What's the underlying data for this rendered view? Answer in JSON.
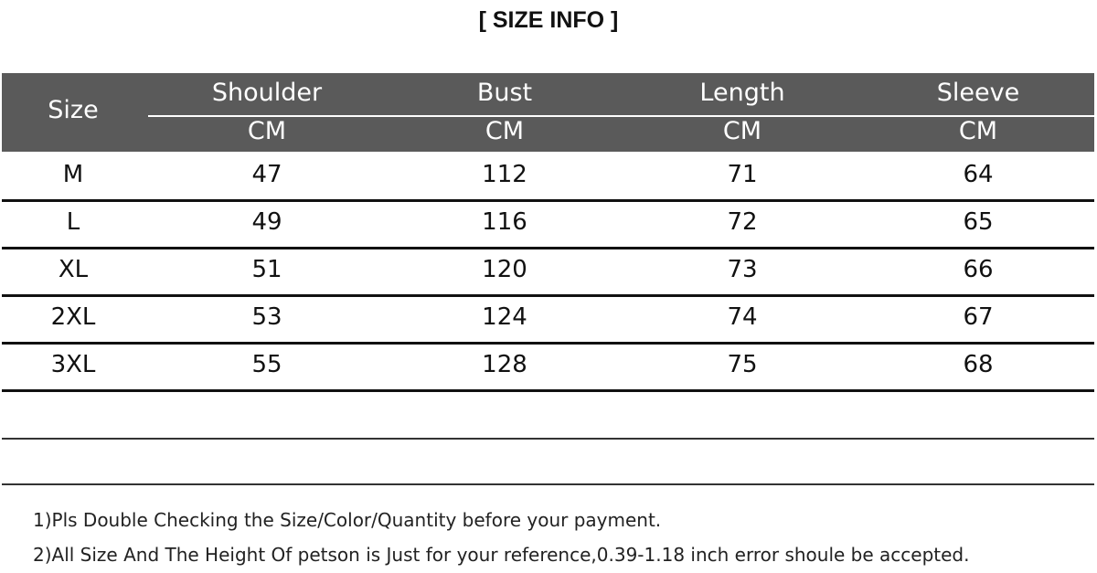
{
  "title": "[ SIZE  INFO ]",
  "table": {
    "size_header": "Size",
    "columns": [
      {
        "name": "Shoulder",
        "unit": "CM"
      },
      {
        "name": "Bust",
        "unit": "CM"
      },
      {
        "name": "Length",
        "unit": "CM"
      },
      {
        "name": "Sleeve",
        "unit": "CM"
      }
    ],
    "rows": [
      [
        "M",
        "47",
        "112",
        "71",
        "64"
      ],
      [
        "L",
        "49",
        "116",
        "72",
        "65"
      ],
      [
        "XL",
        "51",
        "120",
        "73",
        "66"
      ],
      [
        "2XL",
        "53",
        "124",
        "74",
        "67"
      ],
      [
        "3XL",
        "55",
        "128",
        "75",
        "68"
      ]
    ]
  },
  "notes": [
    "1)Pls Double Checking the Size/Color/Quantity before your payment.",
    "2)All Size And The Height Of petson is Just for your reference,0.39-1.18 inch error shoule be accepted."
  ]
}
